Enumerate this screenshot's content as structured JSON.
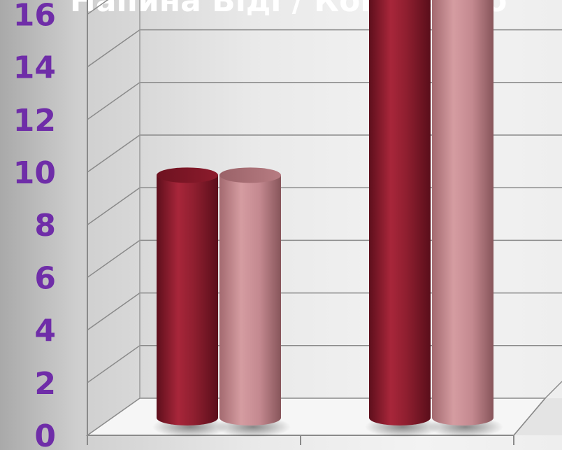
{
  "chart_data": {
    "type": "bar",
    "title": "Напина Віді / Коваленко",
    "xlabel": "",
    "ylabel": "",
    "categories": [
      "",
      ""
    ],
    "series": [
      {
        "color": "#8e1f2f",
        "values": [
          9.3,
          16.9
        ]
      },
      {
        "color": "#c98a8f",
        "values": [
          9.3,
          16.9
        ]
      }
    ],
    "ylim": [
      0,
      16
    ],
    "yticks": [
      "0",
      "2",
      "4",
      "6",
      "8",
      "10",
      "12",
      "14",
      "16"
    ],
    "grid": true,
    "style": "3d-cylinder",
    "colors": {
      "tick_labels": "#6f2da8",
      "title": "#ffffff",
      "gridlines": "#8a8a8a"
    }
  }
}
